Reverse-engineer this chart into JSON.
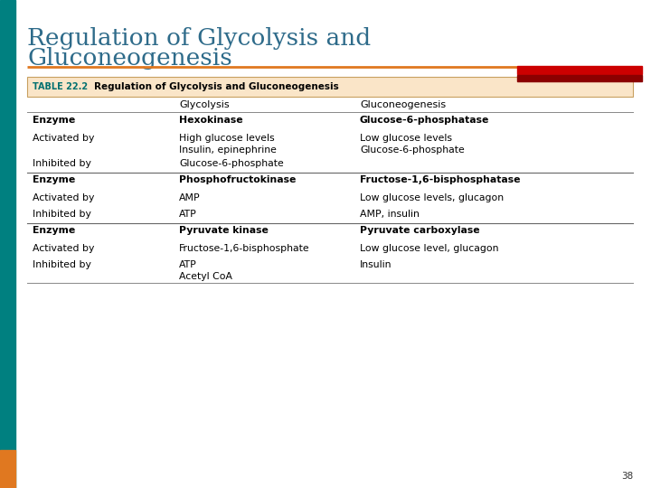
{
  "title_line1": "Regulation of Glycolysis and",
  "title_line2": "Gluconeogenesis",
  "title_color": "#2E6B8A",
  "slide_bg": "#FFFFFF",
  "left_bar_color": "#008080",
  "orange_bar_color": "#E07820",
  "red_accent_color": "#CC0000",
  "dark_red_color": "#8B0000",
  "table_header_bg": "#FAE5C8",
  "table_header_border": "#C8A060",
  "table_label": "TABLE 22.2",
  "table_title": "Regulation of Glycolysis and Gluconeogenesis",
  "col_header1": "Glycolysis",
  "col_header2": "Gluconeogenesis",
  "rows": [
    {
      "label": "Enzyme",
      "col1": "Hexokinase",
      "col2": "Glucose-6-phosphatase",
      "bold": true,
      "thick_div": true
    },
    {
      "label": "Activated by",
      "col1": "High glucose levels\nInsulin, epinephrine",
      "col2": "Low glucose levels\nGlucose-6-phosphate",
      "bold": false,
      "thick_div": false
    },
    {
      "label": "Inhibited by",
      "col1": "Glucose-6-phosphate",
      "col2": "",
      "bold": false,
      "thick_div": false
    },
    {
      "label": "Enzyme",
      "col1": "Phosphofructokinase",
      "col2": "Fructose-1,6-bisphosphatase",
      "bold": true,
      "thick_div": true
    },
    {
      "label": "Activated by",
      "col1": "AMP",
      "col2": "Low glucose levels, glucagon",
      "bold": false,
      "thick_div": false
    },
    {
      "label": "Inhibited by",
      "col1": "ATP",
      "col2": "AMP, insulin",
      "bold": false,
      "thick_div": false
    },
    {
      "label": "Enzyme",
      "col1": "Pyruvate kinase",
      "col2": "Pyruvate carboxylase",
      "bold": true,
      "thick_div": true
    },
    {
      "label": "Activated by",
      "col1": "Fructose-1,6-bisphosphate",
      "col2": "Low glucose level, glucagon",
      "bold": false,
      "thick_div": false
    },
    {
      "label": "Inhibited by",
      "col1": "ATP\nAcetyl CoA",
      "col2": "Insulin",
      "bold": false,
      "thick_div": false
    }
  ],
  "page_number": "38"
}
